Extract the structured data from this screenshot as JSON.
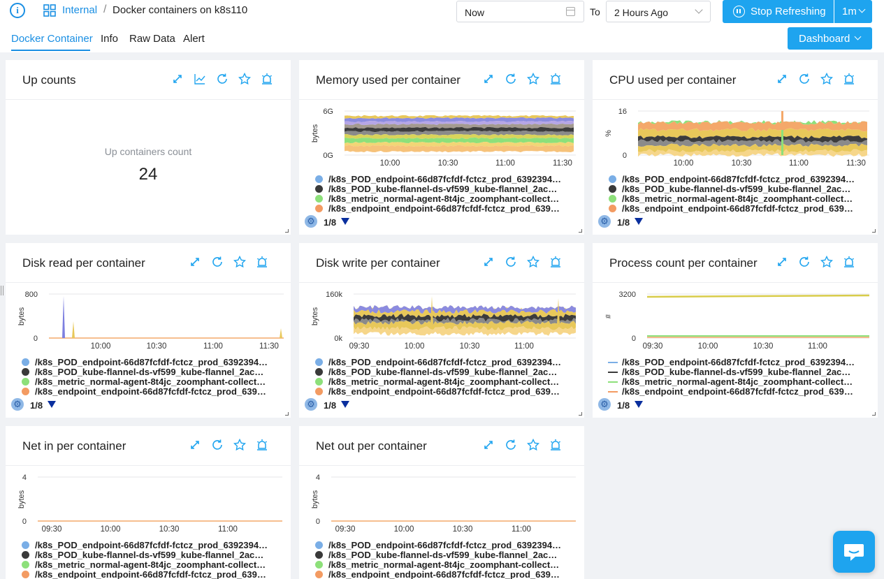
{
  "header": {
    "breadcrumb_link": "Internal",
    "breadcrumb_sep": "/",
    "title": "Docker containers on k8s110",
    "from_value": "Now",
    "to_label": "To",
    "to_value": "2 Hours Ago",
    "refresh_label": "Stop Refreshing",
    "interval": "1m",
    "dashboard_label": "Dashboard",
    "icons": {
      "info": "info-icon",
      "grid": "grid-icon",
      "calendar": "calendar-icon",
      "pause": "pause-icon"
    }
  },
  "tabs": [
    {
      "label": "Docker Container",
      "active": true
    },
    {
      "label": "Info",
      "active": false
    },
    {
      "label": "Raw Data",
      "active": false
    },
    {
      "label": "Alert",
      "active": false
    }
  ],
  "legend_items": [
    {
      "label": "/k8s_POD_endpoint-66d87fcfdf-fctcz_prod_6392394…",
      "color": "#7aaee6"
    },
    {
      "label": "/k8s_POD_kube-flannel-ds-vf599_kube-flannel_2ac…",
      "color": "#3a3a3a"
    },
    {
      "label": "/k8s_metric_normal-agent-8t4jc_zoomphant-collect…",
      "color": "#8de07a"
    },
    {
      "label": "/k8s_endpoint_endpoint-66d87fcfdf-fctcz_prod_639…",
      "color": "#f39b62"
    }
  ],
  "pager": "1/8",
  "panels": {
    "up": {
      "title": "Up counts",
      "label": "Up containers count",
      "value": "24"
    },
    "memory": {
      "title": "Memory used per container",
      "ylabel": "bytes",
      "yticks": [
        "6G",
        "0G"
      ],
      "xticks": [
        "10:00",
        "10:30",
        "11:00",
        "11:30"
      ]
    },
    "cpu": {
      "title": "CPU used per container",
      "ylabel": "%",
      "yticks": [
        "16",
        "0"
      ],
      "xticks": [
        "10:00",
        "10:30",
        "11:00",
        "11:30"
      ]
    },
    "disk_read": {
      "title": "Disk read per container",
      "ylabel": "bytes",
      "yticks": [
        "800",
        "0"
      ],
      "xticks": [
        "10:00",
        "10:30",
        "11:00",
        "11:30"
      ]
    },
    "disk_write": {
      "title": "Disk write per container",
      "ylabel": "bytes",
      "yticks": [
        "160k",
        "0k"
      ],
      "xticks": [
        "09:30",
        "10:00",
        "10:30",
        "11:00"
      ]
    },
    "process": {
      "title": "Process count per container",
      "ylabel": "#",
      "yticks": [
        "3200",
        "0"
      ],
      "xticks": [
        "09:30",
        "10:00",
        "10:30",
        "11:00"
      ]
    },
    "net_in": {
      "title": "Net in per container",
      "ylabel": "bytes",
      "yticks": [
        "4",
        "0"
      ],
      "xticks": [
        "09:30",
        "10:00",
        "10:30",
        "11:00"
      ]
    },
    "net_out": {
      "title": "Net out per container",
      "ylabel": "bytes",
      "yticks": [
        "4",
        "0"
      ],
      "xticks": [
        "09:30",
        "10:00",
        "10:30",
        "11:00"
      ]
    }
  },
  "panel_icons": [
    "expand-icon",
    "line-chart-icon",
    "refresh-icon",
    "star-icon",
    "alarm-icon"
  ],
  "accent_color": "#1ea4ef"
}
